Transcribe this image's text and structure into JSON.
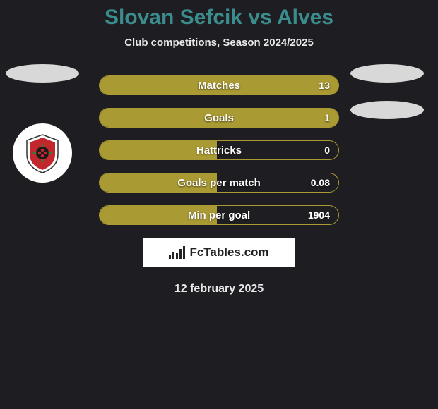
{
  "title": "Slovan Sefcik vs Alves",
  "subtitle": "Club competitions, Season 2024/2025",
  "date": "12 february 2025",
  "brand": "FcTables.com",
  "colors": {
    "background": "#1e1e22",
    "title": "#3b8c8c",
    "bar_fill": "#aa9a33",
    "bar_border": "#aa9a33",
    "text": "#e8e8e8",
    "ellipse": "#d8d8d8"
  },
  "bars": [
    {
      "label": "Matches",
      "value": "13",
      "fill_pct": 100
    },
    {
      "label": "Goals",
      "value": "1",
      "fill_pct": 100
    },
    {
      "label": "Hattricks",
      "value": "0",
      "fill_pct": 49
    },
    {
      "label": "Goals per match",
      "value": "0.08",
      "fill_pct": 49
    },
    {
      "label": "Min per goal",
      "value": "1904",
      "fill_pct": 49
    }
  ]
}
